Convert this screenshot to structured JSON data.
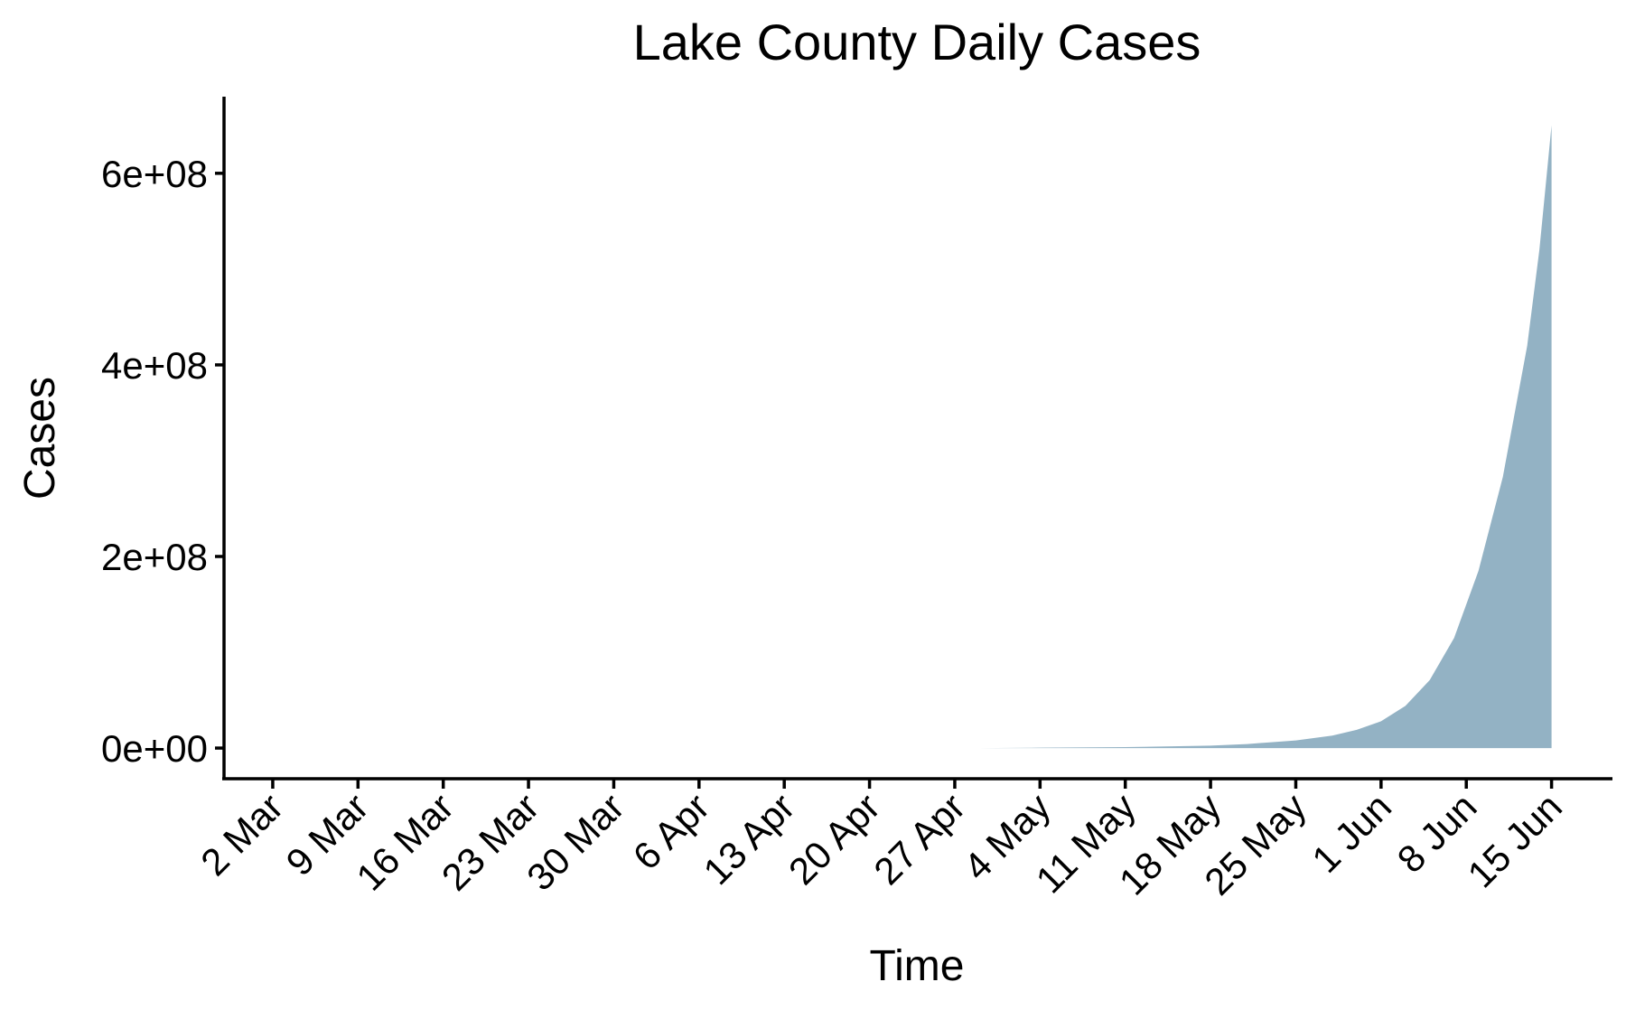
{
  "chart_data": {
    "type": "area",
    "title": "Lake County Daily Cases",
    "xlabel": "Time",
    "ylabel": "Cases",
    "x_ticks": [
      "2 Mar",
      "9 Mar",
      "16 Mar",
      "23 Mar",
      "30 Mar",
      "6 Apr",
      "13 Apr",
      "20 Apr",
      "27 Apr",
      "4 May",
      "11 May",
      "18 May",
      "25 May",
      "1 Jun",
      "8 Jun",
      "15 Jun"
    ],
    "x_tick_dates": [
      "2020-03-02",
      "2020-03-09",
      "2020-03-16",
      "2020-03-23",
      "2020-03-30",
      "2020-04-06",
      "2020-04-13",
      "2020-04-20",
      "2020-04-27",
      "2020-05-04",
      "2020-05-11",
      "2020-05-18",
      "2020-05-25",
      "2020-06-01",
      "2020-06-08",
      "2020-06-15"
    ],
    "x_range": [
      "2020-02-27",
      "2020-06-20"
    ],
    "y_ticks": [
      0,
      200000000,
      400000000,
      600000000
    ],
    "y_tick_labels": [
      "0e+00",
      "2e+08",
      "4e+08",
      "6e+08"
    ],
    "ylim": [
      -32000000,
      680000000
    ],
    "grid": false,
    "legend": "none",
    "fill_color": "#93b2c4",
    "series": [
      {
        "x": [
          "2020-04-29",
          "2020-05-04",
          "2020-05-11",
          "2020-05-18",
          "2020-05-21",
          "2020-05-25",
          "2020-05-28",
          "2020-05-30",
          "2020-06-01",
          "2020-06-03",
          "2020-06-05",
          "2020-06-07",
          "2020-06-09",
          "2020-06-11",
          "2020-06-13",
          "2020-06-14",
          "2020-06-15"
        ],
        "y": [
          0,
          400000,
          1000000,
          2500000,
          4200000,
          8000000,
          13000000,
          19000000,
          28000000,
          44000000,
          71000000,
          115000000,
          185000000,
          283000000,
          420000000,
          520000000,
          650000000
        ]
      }
    ]
  }
}
